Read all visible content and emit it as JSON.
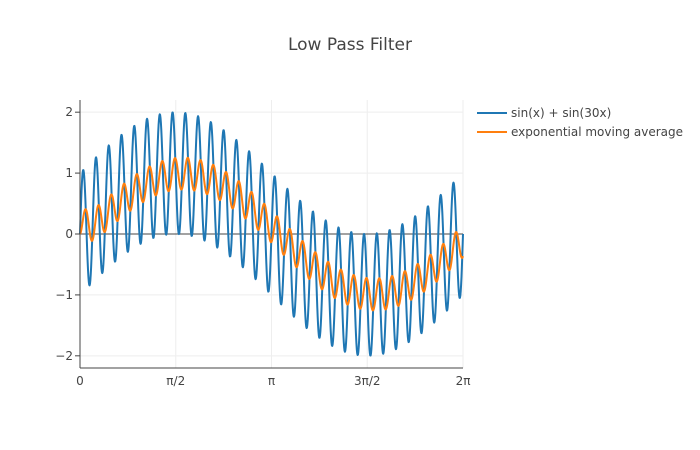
{
  "chart_data": {
    "type": "line",
    "title": "Low Pass Filter",
    "xlabel": "",
    "ylabel": "",
    "xlim": [
      0,
      6.283185307
    ],
    "ylim": [
      -2.2,
      2.2
    ],
    "grid": true,
    "zero_line": true,
    "legend_position": "top-right",
    "x_ticks": [
      {
        "value": 0,
        "label": "0"
      },
      {
        "value": 1.570796327,
        "label": "π/2"
      },
      {
        "value": 3.141592654,
        "label": "π"
      },
      {
        "value": 4.71238898,
        "label": "3π/2"
      },
      {
        "value": 6.283185307,
        "label": "2π"
      }
    ],
    "y_ticks": [
      {
        "value": 2,
        "label": "2"
      },
      {
        "value": 1,
        "label": "1"
      },
      {
        "value": 0,
        "label": "0"
      },
      {
        "value": -1,
        "label": "−1"
      },
      {
        "value": -2,
        "label": "−2"
      }
    ],
    "series": [
      {
        "name": "sin(x) + sin(30x)",
        "color": "#1f77b4",
        "expression": "sin(x) + sin(30x)",
        "samples": 1000
      },
      {
        "name": "exponential moving average",
        "color": "#ff7f0e",
        "source_series": 0,
        "smoothing_alpha": 0.05
      }
    ]
  }
}
